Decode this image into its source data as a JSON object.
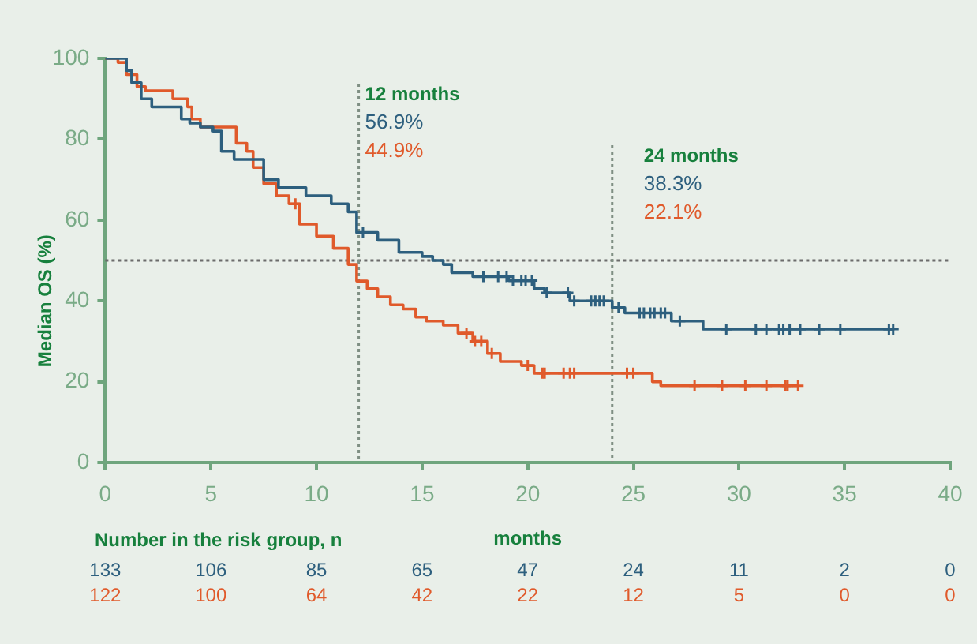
{
  "chart_data": [
    {
      "type": "step",
      "ylabel": "Median OS (%)",
      "xlabel": "months",
      "xlim": [
        0,
        40
      ],
      "xticks": [
        0,
        5,
        10,
        15,
        20,
        25,
        30,
        35,
        40
      ],
      "ylim": [
        0,
        100
      ],
      "yticks": [
        0,
        20,
        40,
        60,
        80,
        100
      ],
      "series": [
        {
          "type": "step",
          "color": "#2d5f7e",
          "x": [
            0,
            1.0,
            1.25,
            1.7,
            2.2,
            3.6,
            4.0,
            4.5,
            5.1,
            5.5,
            6.1,
            7.5,
            8.2,
            9.5,
            10.7,
            11.5,
            11.9,
            12.9,
            13.9,
            15.0,
            15.5,
            16.0,
            16.4,
            17.4,
            19.1,
            20.3,
            20.8,
            22.0,
            24.0,
            24.6,
            26.8,
            28.3,
            37.3
          ],
          "values": [
            100,
            97,
            94,
            90,
            88,
            85,
            84,
            83,
            82,
            77,
            75,
            70,
            68,
            66,
            64,
            62,
            56.9,
            55,
            52,
            51,
            50,
            49,
            47,
            46,
            45,
            43,
            42,
            40,
            38.3,
            37,
            35,
            33,
            33
          ]
        },
        {
          "type": "step",
          "color": "#e05a2b",
          "x": [
            0,
            0.6,
            1.0,
            1.5,
            1.9,
            2.5,
            3.2,
            3.9,
            4.1,
            4.5,
            5.4,
            6.2,
            6.7,
            7.0,
            7.5,
            8.1,
            8.7,
            9.2,
            10.0,
            10.8,
            11.5,
            11.9,
            12.4,
            12.9,
            13.5,
            14.1,
            14.7,
            15.2,
            16.0,
            16.7,
            17.4,
            18.1,
            18.7,
            19.7,
            20.3,
            25.9,
            26.3,
            32.8
          ],
          "values": [
            100,
            99,
            96,
            93,
            92,
            92,
            90,
            88,
            85,
            83,
            83,
            79,
            77,
            73,
            69,
            66,
            64,
            59,
            56,
            53,
            49,
            44.9,
            43,
            41,
            39,
            38,
            36,
            35,
            34,
            32,
            30,
            27,
            25,
            24,
            22.1,
            20,
            19,
            19
          ]
        },
        {
          "type": "scatter",
          "marker": "cross",
          "color": "#2d5f7e",
          "x": [
            12.2,
            17.9,
            18.6,
            19.0,
            19.3,
            19.7,
            19.9,
            20.2,
            20.9,
            21.9,
            22.2,
            23.0,
            23.2,
            23.4,
            23.6,
            24.3,
            25.3,
            25.5,
            25.8,
            26.0,
            26.3,
            26.5,
            27.2,
            29.4,
            30.8,
            31.3,
            31.9,
            32.1,
            32.4,
            32.9,
            33.8,
            34.8,
            37.1,
            37.3
          ],
          "values": [
            56.9,
            46,
            46,
            46,
            45,
            45,
            45,
            45,
            42,
            42,
            40,
            40,
            40,
            40,
            40,
            38.3,
            37,
            37,
            37,
            37,
            37,
            37,
            35,
            33,
            33,
            33,
            33,
            33,
            33,
            33,
            33,
            33,
            33,
            33
          ]
        },
        {
          "type": "scatter",
          "marker": "cross",
          "color": "#e05a2b",
          "x": [
            9.0,
            17.1,
            17.5,
            17.8,
            18.3,
            20.0,
            20.7,
            20.8,
            21.7,
            22.0,
            22.2,
            24.7,
            25.0,
            27.9,
            29.2,
            30.3,
            31.3,
            32.2,
            32.3,
            32.8
          ],
          "values": [
            64,
            32,
            30,
            30,
            27,
            24,
            22.1,
            22.1,
            22.1,
            22.1,
            22.1,
            22.1,
            22.1,
            19,
            19,
            19,
            19,
            19,
            19,
            19
          ]
        }
      ],
      "ref_lines": [
        {
          "axis": "y",
          "value": 50,
          "color": "#6b6b6b",
          "line_style": "dotted"
        },
        {
          "axis": "x",
          "value": 12,
          "label": "12 months",
          "color": "#7f8f83",
          "line_style": "dotted"
        },
        {
          "axis": "x",
          "value": 24,
          "label": "24 months",
          "color": "#7f8f83",
          "line_style": "dotted"
        }
      ],
      "annotations": [
        "56.9%",
        "44.9%",
        "38.3%",
        "22.1%"
      ]
    },
    {
      "type": "other",
      "title": "Number in the risk group, n",
      "annotations": [
        "133",
        "106",
        "85",
        "65",
        "47",
        "24",
        "11",
        "2",
        "0",
        "122",
        "100",
        "64",
        "42",
        "22",
        "12",
        "5",
        "0",
        "0"
      ]
    }
  ]
}
